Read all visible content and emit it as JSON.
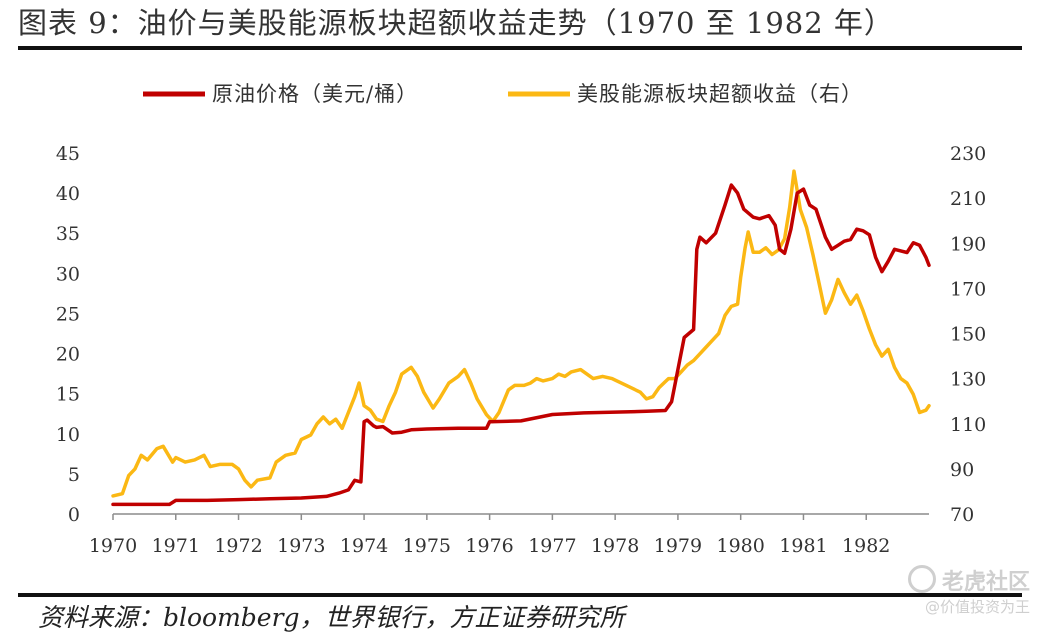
{
  "header": {
    "title": "图表 9：油价与美股能源板块超额收益走势（1970 至 1982 年）"
  },
  "footer": {
    "source": "资料来源：bloomberg，世界银行，方正证券研究所"
  },
  "watermark": {
    "line1": "老虎社区",
    "line2": "@价值投资为王"
  },
  "chart_data": {
    "type": "line",
    "x_tick_labels": [
      "1970",
      "1971",
      "1972",
      "1973",
      "1974",
      "1975",
      "1976",
      "1977",
      "1978",
      "1979",
      "1980",
      "1981",
      "1982"
    ],
    "xlim": [
      1970,
      1983
    ],
    "ylim_left": [
      0,
      45
    ],
    "ylim_right": [
      70,
      230
    ],
    "yticks_left": [
      "0",
      "5",
      "10",
      "15",
      "20",
      "25",
      "30",
      "35",
      "40",
      "45"
    ],
    "yticks_right": [
      "70",
      "90",
      "110",
      "130",
      "150",
      "170",
      "190",
      "210",
      "230"
    ],
    "grid": false,
    "legend_position": "top",
    "colors": {
      "oil": "#c00000",
      "excess": "#fbb814"
    },
    "series": [
      {
        "name": "原油价格（美元/桶）",
        "axis": "left",
        "color": "#c00000",
        "points": [
          [
            1970.0,
            1.2
          ],
          [
            1970.9,
            1.2
          ],
          [
            1971.0,
            1.7
          ],
          [
            1971.5,
            1.7
          ],
          [
            1972.0,
            1.8
          ],
          [
            1972.5,
            1.9
          ],
          [
            1973.0,
            2.0
          ],
          [
            1973.4,
            2.2
          ],
          [
            1973.6,
            2.6
          ],
          [
            1973.75,
            3.0
          ],
          [
            1973.85,
            4.2
          ],
          [
            1973.95,
            4.0
          ],
          [
            1974.0,
            11.5
          ],
          [
            1974.05,
            11.7
          ],
          [
            1974.15,
            11.0
          ],
          [
            1974.2,
            10.8
          ],
          [
            1974.3,
            10.9
          ],
          [
            1974.45,
            10.1
          ],
          [
            1974.6,
            10.2
          ],
          [
            1974.75,
            10.5
          ],
          [
            1975.0,
            10.6
          ],
          [
            1975.5,
            10.7
          ],
          [
            1975.95,
            10.7
          ],
          [
            1976.0,
            11.5
          ],
          [
            1976.5,
            11.6
          ],
          [
            1977.0,
            12.4
          ],
          [
            1977.5,
            12.6
          ],
          [
            1978.0,
            12.7
          ],
          [
            1978.5,
            12.8
          ],
          [
            1978.8,
            12.9
          ],
          [
            1978.9,
            14.0
          ],
          [
            1979.0,
            18.0
          ],
          [
            1979.1,
            22.0
          ],
          [
            1979.25,
            23.0
          ],
          [
            1979.3,
            33.0
          ],
          [
            1979.35,
            34.5
          ],
          [
            1979.45,
            33.8
          ],
          [
            1979.6,
            35.0
          ],
          [
            1979.75,
            38.5
          ],
          [
            1979.85,
            41.0
          ],
          [
            1979.95,
            40.0
          ],
          [
            1980.05,
            38.0
          ],
          [
            1980.2,
            37.0
          ],
          [
            1980.3,
            36.8
          ],
          [
            1980.45,
            37.2
          ],
          [
            1980.55,
            36.0
          ],
          [
            1980.62,
            33.0
          ],
          [
            1980.7,
            32.5
          ],
          [
            1980.8,
            35.5
          ],
          [
            1980.9,
            40.0
          ],
          [
            1981.0,
            40.5
          ],
          [
            1981.1,
            38.5
          ],
          [
            1981.2,
            38.0
          ],
          [
            1981.35,
            34.5
          ],
          [
            1981.45,
            33.0
          ],
          [
            1981.55,
            33.5
          ],
          [
            1981.65,
            34.0
          ],
          [
            1981.75,
            34.2
          ],
          [
            1981.85,
            35.5
          ],
          [
            1981.95,
            35.3
          ],
          [
            1982.05,
            34.8
          ],
          [
            1982.15,
            32.0
          ],
          [
            1982.25,
            30.2
          ],
          [
            1982.35,
            31.5
          ],
          [
            1982.45,
            33.0
          ],
          [
            1982.55,
            32.8
          ],
          [
            1982.65,
            32.6
          ],
          [
            1982.75,
            33.8
          ],
          [
            1982.85,
            33.5
          ],
          [
            1982.95,
            32.0
          ],
          [
            1983.0,
            31.0
          ]
        ]
      },
      {
        "name": "美股能源板块超额收益（右）",
        "axis": "right",
        "color": "#fbb814",
        "points": [
          [
            1970.0,
            78
          ],
          [
            1970.15,
            79
          ],
          [
            1970.25,
            87
          ],
          [
            1970.35,
            90
          ],
          [
            1970.45,
            96
          ],
          [
            1970.55,
            94
          ],
          [
            1970.7,
            99
          ],
          [
            1970.8,
            100
          ],
          [
            1970.95,
            93
          ],
          [
            1971.0,
            95
          ],
          [
            1971.15,
            93
          ],
          [
            1971.3,
            94
          ],
          [
            1971.45,
            96
          ],
          [
            1971.55,
            91
          ],
          [
            1971.7,
            92
          ],
          [
            1971.9,
            92
          ],
          [
            1972.0,
            90
          ],
          [
            1972.1,
            85
          ],
          [
            1972.2,
            82
          ],
          [
            1972.3,
            85
          ],
          [
            1972.5,
            86
          ],
          [
            1972.6,
            93
          ],
          [
            1972.75,
            96
          ],
          [
            1972.9,
            97
          ],
          [
            1973.0,
            103
          ],
          [
            1973.15,
            105
          ],
          [
            1973.25,
            110
          ],
          [
            1973.35,
            113
          ],
          [
            1973.45,
            110
          ],
          [
            1973.55,
            112
          ],
          [
            1973.65,
            108
          ],
          [
            1973.75,
            115
          ],
          [
            1973.85,
            122
          ],
          [
            1973.92,
            128
          ],
          [
            1974.0,
            118
          ],
          [
            1974.1,
            116
          ],
          [
            1974.2,
            112
          ],
          [
            1974.3,
            111
          ],
          [
            1974.4,
            118
          ],
          [
            1974.5,
            124
          ],
          [
            1974.6,
            132
          ],
          [
            1974.75,
            135
          ],
          [
            1974.85,
            131
          ],
          [
            1974.95,
            124
          ],
          [
            1975.1,
            117
          ],
          [
            1975.2,
            121
          ],
          [
            1975.35,
            128
          ],
          [
            1975.5,
            131
          ],
          [
            1975.6,
            134
          ],
          [
            1975.7,
            128
          ],
          [
            1975.8,
            121
          ],
          [
            1975.95,
            114
          ],
          [
            1976.05,
            111
          ],
          [
            1976.15,
            115
          ],
          [
            1976.3,
            125
          ],
          [
            1976.4,
            127
          ],
          [
            1976.55,
            127
          ],
          [
            1976.65,
            128
          ],
          [
            1976.75,
            130
          ],
          [
            1976.85,
            129
          ],
          [
            1977.0,
            130
          ],
          [
            1977.1,
            132
          ],
          [
            1977.2,
            131
          ],
          [
            1977.3,
            133
          ],
          [
            1977.45,
            134
          ],
          [
            1977.55,
            132
          ],
          [
            1977.65,
            130
          ],
          [
            1977.8,
            131
          ],
          [
            1977.95,
            130
          ],
          [
            1978.1,
            128
          ],
          [
            1978.25,
            126
          ],
          [
            1978.4,
            124
          ],
          [
            1978.5,
            121
          ],
          [
            1978.6,
            122
          ],
          [
            1978.7,
            126
          ],
          [
            1978.85,
            130
          ],
          [
            1978.95,
            130
          ],
          [
            1979.05,
            133
          ],
          [
            1979.15,
            136
          ],
          [
            1979.25,
            138
          ],
          [
            1979.35,
            141
          ],
          [
            1979.45,
            144
          ],
          [
            1979.55,
            147
          ],
          [
            1979.65,
            150
          ],
          [
            1979.75,
            158
          ],
          [
            1979.85,
            162
          ],
          [
            1979.95,
            163
          ],
          [
            1980.0,
            175
          ],
          [
            1980.07,
            188
          ],
          [
            1980.12,
            195
          ],
          [
            1980.2,
            186
          ],
          [
            1980.3,
            186
          ],
          [
            1980.4,
            188
          ],
          [
            1980.5,
            185
          ],
          [
            1980.6,
            187
          ],
          [
            1980.7,
            192
          ],
          [
            1980.78,
            206
          ],
          [
            1980.85,
            222
          ],
          [
            1980.95,
            205
          ],
          [
            1981.05,
            197
          ],
          [
            1981.15,
            185
          ],
          [
            1981.25,
            172
          ],
          [
            1981.35,
            159
          ],
          [
            1981.45,
            165
          ],
          [
            1981.55,
            174
          ],
          [
            1981.65,
            168
          ],
          [
            1981.75,
            163
          ],
          [
            1981.85,
            167
          ],
          [
            1981.95,
            160
          ],
          [
            1982.05,
            152
          ],
          [
            1982.15,
            145
          ],
          [
            1982.25,
            140
          ],
          [
            1982.35,
            143
          ],
          [
            1982.45,
            135
          ],
          [
            1982.55,
            130
          ],
          [
            1982.65,
            128
          ],
          [
            1982.75,
            123
          ],
          [
            1982.85,
            115
          ],
          [
            1982.95,
            116
          ],
          [
            1983.0,
            118
          ]
        ]
      }
    ]
  }
}
